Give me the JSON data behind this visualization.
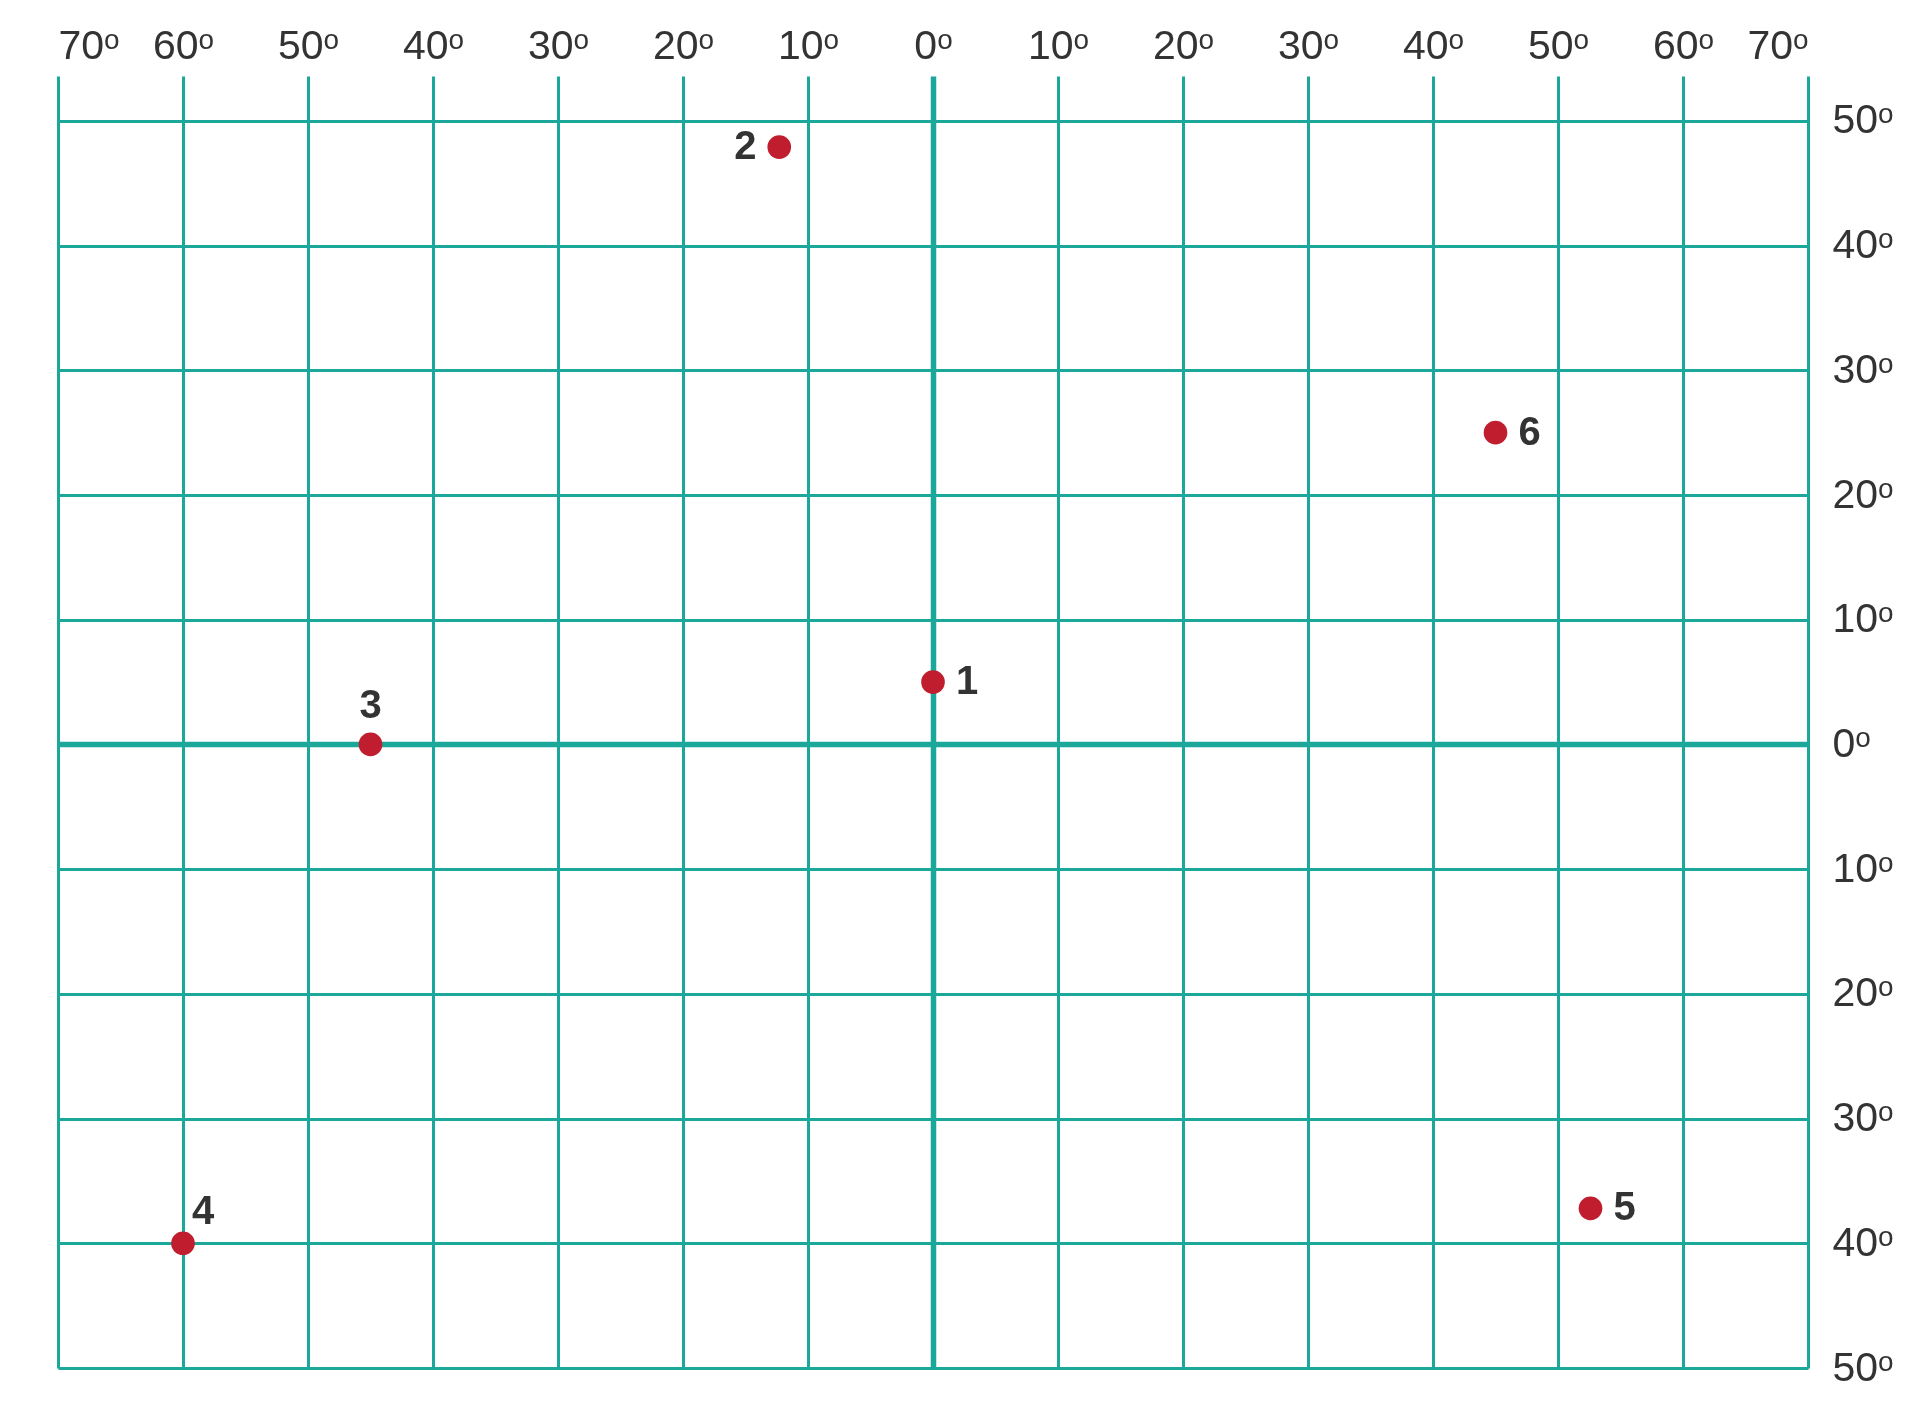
{
  "chart_data": {
    "type": "scatter",
    "x": [
      0,
      -12.3,
      -45,
      -60,
      52.6,
      45
    ],
    "values": [
      5,
      47.9,
      0,
      -40,
      -37.2,
      25
    ],
    "color": "#c01d2e",
    "marker": "circle",
    "grid": true,
    "xlim": [
      -70,
      70
    ],
    "xticks": [
      {
        "value": -70,
        "label": "70ᵒ"
      },
      {
        "value": -60,
        "label": "60ᵒ"
      },
      {
        "value": -50,
        "label": "50ᵒ"
      },
      {
        "value": -40,
        "label": "40ᵒ"
      },
      {
        "value": -30,
        "label": "30ᵒ"
      },
      {
        "value": -20,
        "label": "20ᵒ"
      },
      {
        "value": -10,
        "label": "10ᵒ"
      },
      {
        "value": 0,
        "label": "0ᵒ"
      },
      {
        "value": 10,
        "label": "10ᵒ"
      },
      {
        "value": 20,
        "label": "20ᵒ"
      },
      {
        "value": 30,
        "label": "30ᵒ"
      },
      {
        "value": 40,
        "label": "40ᵒ"
      },
      {
        "value": 50,
        "label": "50ᵒ"
      },
      {
        "value": 60,
        "label": "60ᵒ"
      },
      {
        "value": 70,
        "label": "70ᵒ"
      }
    ],
    "ylim": [
      -50,
      53.6
    ],
    "yticks": [
      {
        "value": 50,
        "label": "50ᵒ"
      },
      {
        "value": 40,
        "label": "40ᵒ"
      },
      {
        "value": 30,
        "label": "30ᵒ"
      },
      {
        "value": 20,
        "label": "20ᵒ"
      },
      {
        "value": 10,
        "label": "10ᵒ"
      },
      {
        "value": 0,
        "label": "0ᵒ"
      },
      {
        "value": -10,
        "label": "10ᵒ"
      },
      {
        "value": -20,
        "label": "20ᵒ"
      },
      {
        "value": -30,
        "label": "30ᵒ"
      },
      {
        "value": -40,
        "label": "40ᵒ"
      },
      {
        "value": -50,
        "label": "50ᵒ"
      }
    ],
    "annotations": [
      {
        "text": "1",
        "x": 0,
        "y": 5
      },
      {
        "text": "2",
        "x": -12.3,
        "y": 47.9
      },
      {
        "text": "3",
        "x": -45,
        "y": 0
      },
      {
        "text": "4",
        "x": -60,
        "y": -40
      },
      {
        "text": "5",
        "x": 52.6,
        "y": -37.2
      },
      {
        "text": "6",
        "x": 45,
        "y": 25
      }
    ]
  }
}
